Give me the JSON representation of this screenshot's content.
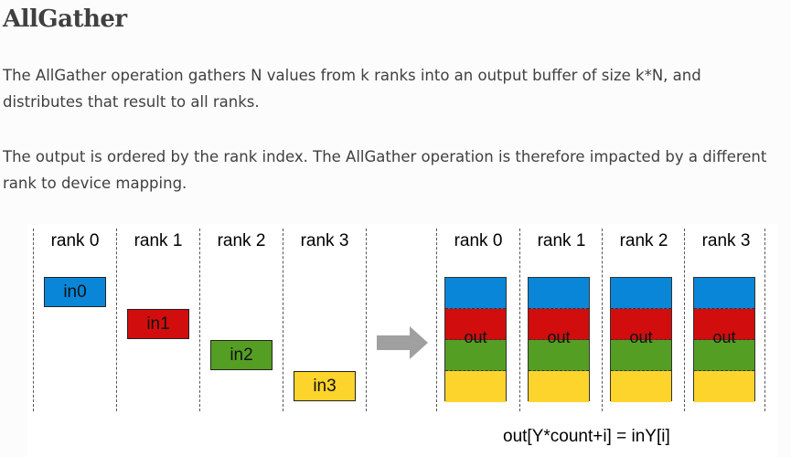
{
  "title": "AllGather",
  "paragraphs": [
    "The AllGather operation gathers N values from k ranks into an output buffer of size k*N, and distributes that result to all ranks.",
    "The output is ordered by the rank index. The AllGather operation is therefore impacted by a different rank to device mapping."
  ],
  "diagram": {
    "input_ranks": [
      "rank 0",
      "rank 1",
      "rank 2",
      "rank 3"
    ],
    "inputs": [
      {
        "label": "in0",
        "color": "#0a86d8"
      },
      {
        "label": "in1",
        "color": "#d20d0d"
      },
      {
        "label": "in2",
        "color": "#559e24"
      },
      {
        "label": "in3",
        "color": "#fcd42c"
      }
    ],
    "output_ranks": [
      "rank 0",
      "rank 1",
      "rank 2",
      "rank 3"
    ],
    "output_label": "out",
    "arrow_color": "#a0a0a0",
    "formula": "out[Y*count+i] = inY[i]"
  }
}
